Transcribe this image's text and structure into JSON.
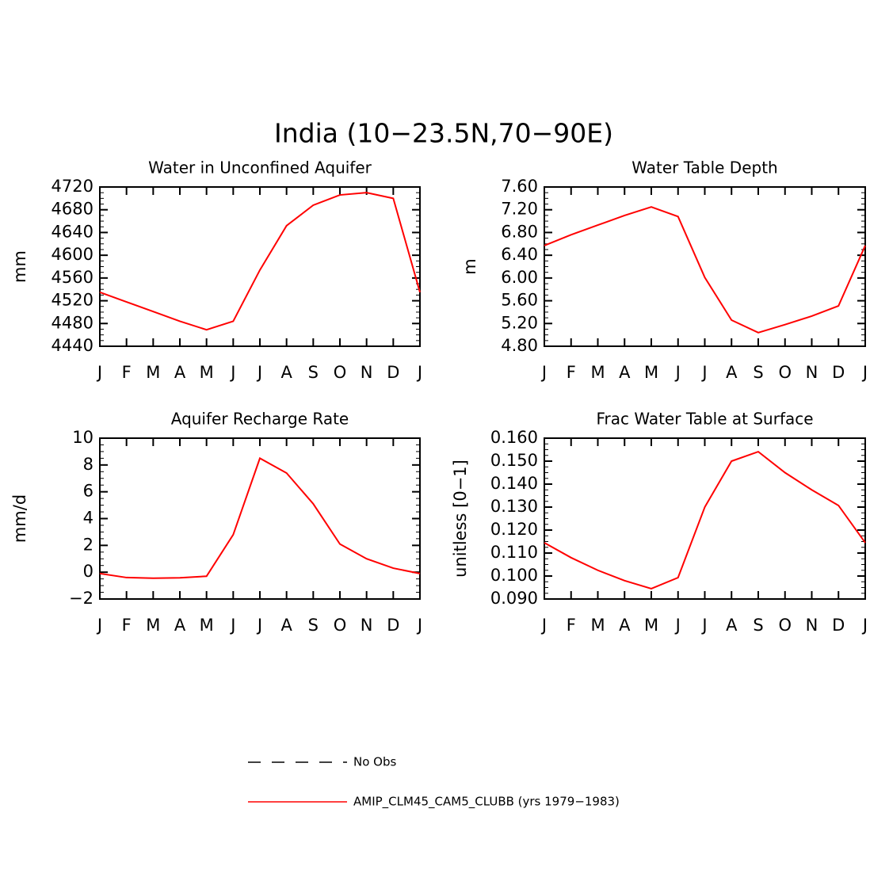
{
  "title": "India (10−23.5N,70−90E)",
  "chart_data": [
    {
      "type": "line",
      "title": "Water in Unconfined Aquifer",
      "ylabel": "mm",
      "categories": [
        "J",
        "F",
        "M",
        "A",
        "M",
        "J",
        "J",
        "A",
        "S",
        "O",
        "N",
        "D",
        "J"
      ],
      "values": [
        4535,
        4518,
        4501,
        4484,
        4469,
        4484,
        4574,
        4652,
        4688,
        4706,
        4710,
        4700,
        4535
      ],
      "color": "#ff0000",
      "ylim": [
        4440,
        4720
      ],
      "yticks": [
        4440,
        4480,
        4520,
        4560,
        4600,
        4640,
        4680,
        4720
      ]
    },
    {
      "type": "line",
      "title": "Water Table Depth",
      "ylabel": "m",
      "categories": [
        "J",
        "F",
        "M",
        "A",
        "M",
        "J",
        "J",
        "A",
        "S",
        "O",
        "N",
        "D",
        "J"
      ],
      "values": [
        6.57,
        6.76,
        6.93,
        7.1,
        7.25,
        7.08,
        6.01,
        5.26,
        5.04,
        5.18,
        5.33,
        5.51,
        6.57
      ],
      "color": "#ff0000",
      "ylim": [
        4.8,
        7.6
      ],
      "yticks": [
        {
          "value": 4.8,
          "label": "4.80"
        },
        {
          "value": 5.2,
          "label": "5.20"
        },
        {
          "value": 5.6,
          "label": "5.60"
        },
        {
          "value": 6.0,
          "label": "6.00"
        },
        {
          "value": 6.4,
          "label": "6.40"
        },
        {
          "value": 6.8,
          "label": "6.80"
        },
        {
          "value": 7.2,
          "label": "7.20"
        },
        {
          "value": 7.6,
          "label": "7.60"
        }
      ]
    },
    {
      "type": "line",
      "title": "Aquifer Recharge Rate",
      "ylabel": "mm/d",
      "categories": [
        "J",
        "F",
        "M",
        "A",
        "M",
        "J",
        "J",
        "A",
        "S",
        "O",
        "N",
        "D",
        "J"
      ],
      "values": [
        -0.1,
        -0.4,
        -0.45,
        -0.42,
        -0.3,
        2.8,
        8.5,
        7.4,
        5.1,
        2.1,
        1.0,
        0.3,
        -0.1
      ],
      "color": "#ff0000",
      "ylim": [
        -2,
        10
      ],
      "yticks": [
        {
          "value": -2,
          "label": "−2"
        },
        0,
        2,
        4,
        6,
        8,
        10
      ]
    },
    {
      "type": "line",
      "title": "Frac Water Table at Surface",
      "ylabel": "unitless [0−1]",
      "categories": [
        "J",
        "F",
        "M",
        "A",
        "M",
        "J",
        "J",
        "A",
        "S",
        "O",
        "N",
        "D",
        "J"
      ],
      "values": [
        0.1145,
        0.108,
        0.1025,
        0.098,
        0.0945,
        0.0993,
        0.13,
        0.15,
        0.1541,
        0.145,
        0.1375,
        0.1307,
        0.1145
      ],
      "color": "#ff0000",
      "ylim": [
        0.09,
        0.16
      ],
      "yticks": [
        {
          "value": 0.09,
          "label": "0.090"
        },
        {
          "value": 0.1,
          "label": "0.100"
        },
        {
          "value": 0.11,
          "label": "0.110"
        },
        {
          "value": 0.12,
          "label": "0.120"
        },
        {
          "value": 0.13,
          "label": "0.130"
        },
        {
          "value": 0.14,
          "label": "0.140"
        },
        {
          "value": 0.15,
          "label": "0.150"
        },
        {
          "value": 0.16,
          "label": "0.160"
        }
      ]
    }
  ],
  "legend": [
    {
      "name": "No Obs",
      "color": "#000000",
      "dashed": true
    },
    {
      "name": "AMIP_CLM45_CAM5_CLUBB (yrs 1979−1983)",
      "color": "#ff0000",
      "dashed": false
    }
  ]
}
